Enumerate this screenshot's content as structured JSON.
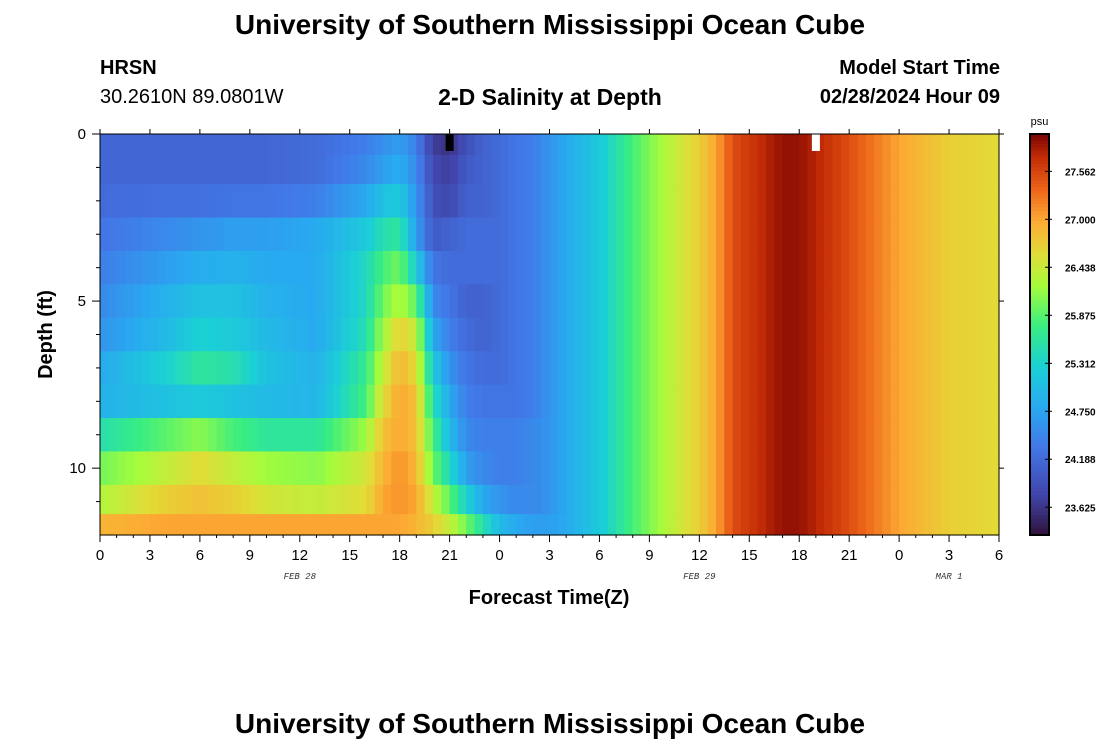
{
  "header": {
    "title": "University of Southern Mississippi Ocean Cube",
    "station": "HRSN",
    "coords": "30.2610N  89.0801W",
    "plot_title": "2-D Salinity at Depth",
    "start_label": "Model Start Time",
    "start_value": "02/28/2024 Hour 09"
  },
  "footer": {
    "title": "University of Southern Mississippi Ocean Cube"
  },
  "colors": {
    "background": "#ffffff",
    "axis": "#000000",
    "missing": "#ffffff"
  },
  "chart_data": {
    "type": "heatmap",
    "title": "2-D Salinity at Depth",
    "xlabel": "Forecast Time(Z)",
    "ylabel": "Depth (ft)",
    "x_ticks": [
      "0",
      "3",
      "6",
      "9",
      "12",
      "15",
      "18",
      "21",
      "0",
      "3",
      "6",
      "9",
      "12",
      "15",
      "18",
      "21",
      "0",
      "3",
      "6"
    ],
    "x_range_hours": [
      0,
      54
    ],
    "date_labels": [
      {
        "text": "FEB 28",
        "hour": 12
      },
      {
        "text": "FEB 29",
        "hour": 36
      },
      {
        "text": "MAR 1",
        "hour": 51
      }
    ],
    "y_ticks": [
      0,
      5,
      10
    ],
    "y_range_ft": [
      0,
      12
    ],
    "unit": "psu",
    "colorbar_ticks": [
      "27.562",
      "27.000",
      "26.438",
      "25.875",
      "25.312",
      "24.750",
      "24.188",
      "23.625"
    ],
    "colorbar_range": [
      23.3,
      28.0
    ],
    "layers_ft": [
      0.25,
      1.0,
      2.0,
      3.0,
      4.0,
      5.0,
      6.0,
      7.0,
      8.0,
      9.0,
      10.0,
      11.0,
      11.75
    ],
    "hour_keyframes": [
      0,
      4,
      6,
      8,
      10,
      13,
      16,
      17,
      18,
      19,
      20,
      21,
      22,
      23,
      24,
      25,
      26,
      27,
      28,
      30,
      32,
      34,
      36,
      37,
      38,
      41,
      42,
      45,
      48,
      51,
      54
    ],
    "salinity_psu": [
      [
        24.15,
        24.15,
        24.15,
        24.15,
        24.15,
        24.2,
        24.4,
        24.55,
        24.7,
        24.4,
        23.7,
        23.6,
        23.9,
        24.1,
        24.2,
        24.3,
        24.4,
        24.6,
        24.8,
        25.2,
        25.8,
        26.3,
        26.7,
        27.0,
        27.5,
        27.9,
        27.9,
        27.5,
        27.0,
        26.7,
        26.6
      ],
      [
        24.15,
        24.15,
        24.15,
        24.15,
        24.15,
        24.2,
        24.5,
        24.7,
        24.85,
        24.5,
        23.8,
        23.7,
        24.0,
        24.1,
        24.2,
        24.3,
        24.4,
        24.6,
        24.8,
        25.2,
        25.8,
        26.3,
        26.7,
        27.0,
        27.5,
        27.9,
        27.9,
        27.5,
        27.0,
        26.7,
        26.6
      ],
      [
        24.2,
        24.25,
        24.25,
        24.3,
        24.3,
        24.4,
        24.8,
        25.1,
        25.2,
        24.6,
        23.9,
        23.8,
        24.1,
        24.1,
        24.2,
        24.3,
        24.4,
        24.6,
        24.8,
        25.2,
        25.8,
        26.3,
        26.7,
        27.0,
        27.5,
        27.9,
        27.9,
        27.5,
        27.0,
        26.7,
        26.6
      ],
      [
        24.3,
        24.5,
        24.6,
        24.7,
        24.7,
        24.8,
        25.2,
        25.5,
        25.6,
        24.7,
        24.0,
        24.1,
        24.2,
        24.2,
        24.2,
        24.3,
        24.4,
        24.6,
        24.8,
        25.2,
        25.8,
        26.3,
        26.7,
        27.0,
        27.5,
        27.9,
        27.9,
        27.5,
        27.0,
        26.7,
        26.6
      ],
      [
        24.4,
        24.7,
        24.85,
        24.9,
        24.8,
        24.8,
        25.4,
        25.8,
        26.0,
        25.2,
        24.3,
        24.2,
        24.2,
        24.2,
        24.2,
        24.3,
        24.4,
        24.6,
        24.8,
        25.2,
        25.8,
        26.3,
        26.7,
        27.0,
        27.5,
        27.9,
        27.9,
        27.5,
        27.0,
        26.7,
        26.6
      ],
      [
        24.5,
        24.9,
        25.1,
        25.1,
        24.9,
        24.8,
        25.4,
        26.0,
        26.3,
        25.9,
        24.5,
        24.3,
        24.1,
        24.1,
        24.2,
        24.3,
        24.4,
        24.6,
        24.8,
        25.2,
        25.8,
        26.3,
        26.7,
        27.0,
        27.5,
        27.9,
        27.9,
        27.5,
        27.0,
        26.7,
        26.6
      ],
      [
        24.6,
        25.0,
        25.3,
        25.2,
        25.0,
        24.8,
        25.5,
        26.2,
        26.7,
        26.4,
        24.8,
        24.4,
        24.2,
        24.1,
        24.2,
        24.3,
        24.4,
        24.6,
        24.8,
        25.2,
        25.8,
        26.3,
        26.7,
        27.0,
        27.5,
        27.9,
        27.9,
        27.5,
        27.0,
        26.7,
        26.6
      ],
      [
        24.8,
        25.3,
        25.6,
        25.5,
        25.1,
        24.9,
        25.7,
        26.4,
        26.9,
        26.6,
        25.2,
        24.6,
        24.3,
        24.2,
        24.2,
        24.3,
        24.4,
        24.6,
        24.8,
        25.2,
        25.8,
        26.3,
        26.7,
        27.0,
        27.5,
        27.9,
        27.9,
        27.5,
        27.0,
        26.7,
        26.6
      ],
      [
        24.9,
        25.1,
        25.2,
        25.1,
        25.0,
        24.95,
        25.8,
        26.6,
        27.0,
        26.8,
        25.5,
        24.8,
        24.4,
        24.3,
        24.3,
        24.3,
        24.4,
        24.6,
        24.8,
        25.2,
        25.8,
        26.3,
        26.7,
        27.0,
        27.5,
        27.9,
        27.9,
        27.5,
        27.0,
        26.7,
        26.6
      ],
      [
        25.5,
        25.9,
        26.1,
        25.8,
        25.6,
        25.6,
        26.2,
        26.8,
        27.0,
        26.8,
        25.8,
        25.0,
        24.5,
        24.4,
        24.4,
        24.4,
        24.5,
        24.6,
        24.8,
        25.2,
        25.8,
        26.3,
        26.7,
        27.0,
        27.5,
        27.9,
        27.9,
        27.5,
        27.0,
        26.7,
        26.6
      ],
      [
        26.0,
        26.4,
        26.6,
        26.4,
        26.2,
        26.1,
        26.5,
        26.9,
        27.1,
        26.9,
        26.0,
        25.4,
        24.7,
        24.5,
        24.4,
        24.4,
        24.5,
        24.6,
        24.8,
        25.2,
        25.8,
        26.3,
        26.7,
        27.0,
        27.5,
        27.9,
        27.9,
        27.5,
        27.0,
        26.7,
        26.6
      ],
      [
        26.3,
        26.7,
        26.8,
        26.7,
        26.5,
        26.4,
        26.6,
        27.0,
        27.1,
        27.0,
        26.4,
        25.9,
        25.3,
        24.8,
        24.6,
        24.5,
        24.5,
        24.6,
        24.8,
        25.2,
        25.8,
        26.3,
        26.7,
        27.0,
        27.5,
        27.9,
        27.9,
        27.5,
        27.0,
        26.7,
        26.6
      ],
      [
        26.9,
        27.0,
        27.0,
        27.0,
        27.0,
        27.0,
        27.0,
        27.0,
        27.0,
        26.9,
        26.7,
        26.4,
        26.0,
        25.5,
        25.0,
        24.8,
        24.7,
        24.7,
        24.8,
        25.2,
        25.8,
        26.3,
        26.7,
        27.0,
        27.5,
        27.9,
        27.9,
        27.5,
        27.0,
        26.7,
        26.6
      ]
    ]
  }
}
